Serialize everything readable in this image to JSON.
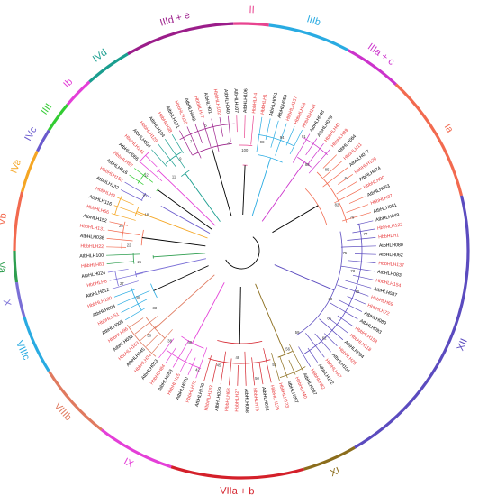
{
  "figure": {
    "colors": {
      "at_gene": "#000000",
      "hb_gene": "#e8393b",
      "backbone": "#000000"
    },
    "groups": [
      {
        "label": "II",
        "color": "#e8438f"
      },
      {
        "label": "IIIb",
        "color": "#29abe2"
      },
      {
        "label": "IIIa + c",
        "color": "#cc33cc"
      },
      {
        "label": "Ia",
        "color": "#f26a4f"
      },
      {
        "label": "XII",
        "color": "#5b4bbf"
      },
      {
        "label": "XI",
        "color": "#8b6d1c"
      },
      {
        "label": "VIIa + b",
        "color": "#d4202a"
      },
      {
        "label": "IX",
        "color": "#e43fd8"
      },
      {
        "label": "VIIIb",
        "color": "#e07a5f"
      },
      {
        "label": "VIIIc",
        "color": "#29abe2"
      },
      {
        "label": "X",
        "color": "#7a6fd6"
      },
      {
        "label": "Va",
        "color": "#2e9e4f"
      },
      {
        "label": "Vb",
        "color": "#f26a4f"
      },
      {
        "label": "IVa",
        "color": "#f5a623"
      },
      {
        "label": "IVc",
        "color": "#6a5acd"
      },
      {
        "label": "IIII",
        "color": "#33cc33"
      },
      {
        "label": "Ib",
        "color": "#e43fd8"
      },
      {
        "label": "IVd",
        "color": "#1a9e8f"
      },
      {
        "label": "IIId + e",
        "color": "#9b1d8a"
      }
    ],
    "leaf_labels": [
      "AtbHLH107",
      "AtbHLH106",
      "HbbHLH4",
      "HbbHLH1",
      "AtbHLH051",
      "AtbHLH050",
      "HbbHLH157",
      "HbbHLH16",
      "HbbHLH144",
      "AtbHLH048",
      "AtbHLH079",
      "HbbHLH41",
      "HbbHLH89",
      "AtbHLH064",
      "HbbHLH11",
      "AtbHLH077",
      "HbbHLH128",
      "AtbHLH074",
      "HbbHLH90",
      "AtbHLH063",
      "HbbHLH37",
      "AtbHLH081",
      "AtbHLH049",
      "HbbHLH122",
      "HbbHLH1",
      "AtbHLH080",
      "AtbHLH062",
      "HbbHLH137",
      "AtbHLH083",
      "HbbHLH154",
      "AtbHLH087",
      "HbbHLH69",
      "HbbHLH72",
      "AtbHLH089",
      "AtbHLH093",
      "HbbHLH153",
      "HbbHLH118",
      "AtbHLH094",
      "HbbHLH25",
      "AtbHLH104",
      "HbbHLH47",
      "AtbHLH112",
      "HbbHLH82",
      "AtbHLH047",
      "HbbHLH40",
      "AtbHLH057",
      "HbbHLH123",
      "HbbHLH125",
      "AtbHLH092",
      "HbbHLH79",
      "AtbHLH058",
      "HbbHLH27",
      "HbbHLH68",
      "AtbHLH039",
      "HbbHLH133",
      "AtbHLH130",
      "HbbHLH70",
      "AtbHLH070",
      "HbbHLH15",
      "AtbHLH053",
      "HbbHLH84",
      "AtbHLH013",
      "HbbHLH34",
      "AtbHLH145",
      "HbbHLH163",
      "AtbHLH032",
      "HbbHLH96",
      "AtbHLH005",
      "HbbHLH51",
      "AtbHLH003",
      "HbbHLH120",
      "AtbHLH012",
      "HbbHLH8",
      "AtbHLH024",
      "HbbHLH81",
      "AtbHLH100",
      "HbbHLH22",
      "AtbHLH038",
      "HbbHLH131",
      "AtbHLH152",
      "HbbHLH66",
      "AtbHLH116",
      "HbbHLH9",
      "AtbHLH132",
      "HbbHLH150",
      "AtbHLH016",
      "HbbHLH57",
      "AtbHLH066",
      "HbbHLH141",
      "AtbHLH034",
      "HbbHLH129",
      "AtbHLH104",
      "HbbHLH38",
      "AtbHLH121",
      "HbbHLH110",
      "AtbHLH042",
      "HbbHLH77",
      "AtbHLH017",
      "HbbHLH102",
      "AtbHLH040"
    ],
    "bootstrap_values": [
      "100",
      "98",
      "94",
      "91",
      "88",
      "85",
      "84",
      "82",
      "79",
      "77",
      "75",
      "73",
      "70",
      "68",
      "65",
      "62",
      "59",
      "56",
      "53",
      "50",
      "48",
      "45",
      "42",
      "40",
      "38",
      "36",
      "33",
      "30",
      "27",
      "25",
      "22",
      "20",
      "18",
      "15",
      "12",
      "11",
      "9",
      "7",
      "5",
      "3"
    ]
  }
}
